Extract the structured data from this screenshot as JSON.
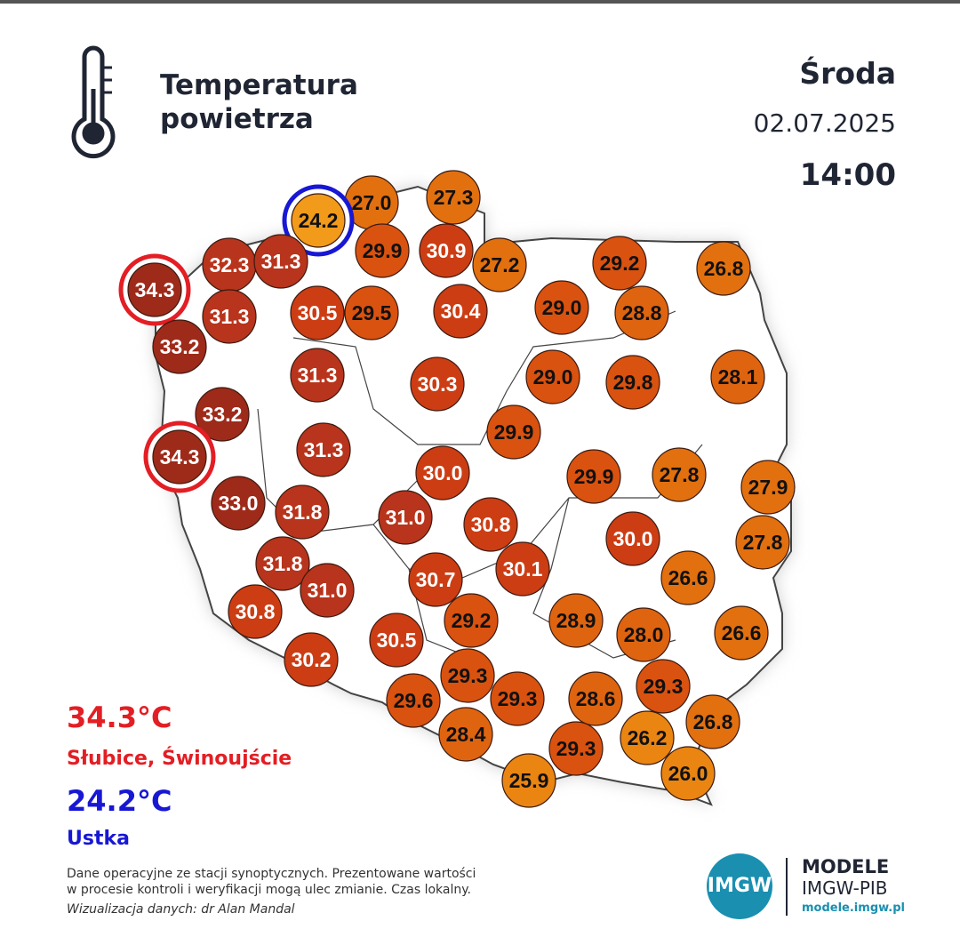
{
  "header": {
    "title_lines": [
      "Temperatura",
      "powietrza"
    ],
    "day": "Środa",
    "date": "02.07.2025",
    "time": "14:00"
  },
  "stations": [
    {
      "value": "27.0",
      "color": "#e2700f"
    },
    {
      "value": "27.3",
      "color": "#e2700f"
    },
    {
      "value": "24.2",
      "color": "#f29a1a",
      "ring": "#1717d4"
    },
    {
      "value": "29.9",
      "color": "#d9520f"
    },
    {
      "value": "30.9",
      "color": "#cc3d14"
    },
    {
      "value": "27.2",
      "color": "#e2700f"
    },
    {
      "value": "32.3",
      "color": "#b8341c"
    },
    {
      "value": "31.3",
      "color": "#b8341c"
    },
    {
      "value": "34.3",
      "color": "#9e2a1a",
      "ring": "#e31e24"
    },
    {
      "value": "29.2",
      "color": "#d9520f"
    },
    {
      "value": "26.8",
      "color": "#e2700f"
    },
    {
      "value": "31.3",
      "color": "#b8341c"
    },
    {
      "value": "30.5",
      "color": "#cc3d14"
    },
    {
      "value": "29.5",
      "color": "#d9520f"
    },
    {
      "value": "30.4",
      "color": "#cc3d14"
    },
    {
      "value": "29.0",
      "color": "#d9520f"
    },
    {
      "value": "28.8",
      "color": "#df6410"
    },
    {
      "value": "33.2",
      "color": "#9e2a1a"
    },
    {
      "value": "31.3",
      "color": "#b8341c"
    },
    {
      "value": "30.3",
      "color": "#cc3d14"
    },
    {
      "value": "29.0",
      "color": "#d9520f"
    },
    {
      "value": "29.8",
      "color": "#d9520f"
    },
    {
      "value": "28.1",
      "color": "#df6410"
    },
    {
      "value": "33.2",
      "color": "#9e2a1a"
    },
    {
      "value": "29.9",
      "color": "#d9520f"
    },
    {
      "value": "34.3",
      "color": "#9e2a1a",
      "ring": "#e31e24"
    },
    {
      "value": "31.3",
      "color": "#b8341c"
    },
    {
      "value": "30.0",
      "color": "#cc3d14"
    },
    {
      "value": "29.9",
      "color": "#d9520f"
    },
    {
      "value": "27.8",
      "color": "#e2700f"
    },
    {
      "value": "27.9",
      "color": "#e2700f"
    },
    {
      "value": "33.0",
      "color": "#9e2a1a"
    },
    {
      "value": "31.8",
      "color": "#b8341c"
    },
    {
      "value": "31.0",
      "color": "#b8341c"
    },
    {
      "value": "30.8",
      "color": "#cc3d14"
    },
    {
      "value": "30.0",
      "color": "#cc3d14"
    },
    {
      "value": "27.8",
      "color": "#e2700f"
    },
    {
      "value": "31.8",
      "color": "#b8341c"
    },
    {
      "value": "31.0",
      "color": "#b8341c"
    },
    {
      "value": "30.7",
      "color": "#cc3d14"
    },
    {
      "value": "30.1",
      "color": "#cc3d14"
    },
    {
      "value": "26.6",
      "color": "#e2700f"
    },
    {
      "value": "30.8",
      "color": "#cc3d14"
    },
    {
      "value": "29.2",
      "color": "#d9520f"
    },
    {
      "value": "28.9",
      "color": "#df6410"
    },
    {
      "value": "28.0",
      "color": "#df6410"
    },
    {
      "value": "26.6",
      "color": "#e2700f"
    },
    {
      "value": "30.5",
      "color": "#cc3d14"
    },
    {
      "value": "30.2",
      "color": "#cc3d14"
    },
    {
      "value": "29.3",
      "color": "#d9520f"
    },
    {
      "value": "29.6",
      "color": "#d9520f"
    },
    {
      "value": "29.3",
      "color": "#d9520f"
    },
    {
      "value": "28.6",
      "color": "#df6410"
    },
    {
      "value": "29.3",
      "color": "#d9520f"
    },
    {
      "value": "26.8",
      "color": "#e2700f"
    },
    {
      "value": "28.4",
      "color": "#df6410"
    },
    {
      "value": "29.3",
      "color": "#d9520f"
    },
    {
      "value": "26.2",
      "color": "#ea8512"
    },
    {
      "value": "26.0",
      "color": "#ea8512"
    },
    {
      "value": "25.9",
      "color": "#ea8512"
    }
  ],
  "extremes": {
    "max_value": "34.3°C",
    "max_places": "Słubice, Świnoujście",
    "min_value": "24.2°C",
    "min_places": "Ustka"
  },
  "footer": {
    "note_lines": [
      "Dane operacyjne ze stacji synoptycznych. Prezentowane wartości",
      "w procesie kontroli i weryfikacji mogą ulec zmianie. Czas lokalny."
    ],
    "credit": "Wizualizacja danych: dr Alan Mandal"
  },
  "logo": {
    "badge": "IMGW",
    "name": "MODELE",
    "org": "IMGW-PIB",
    "url": "modele.imgw.pl"
  }
}
